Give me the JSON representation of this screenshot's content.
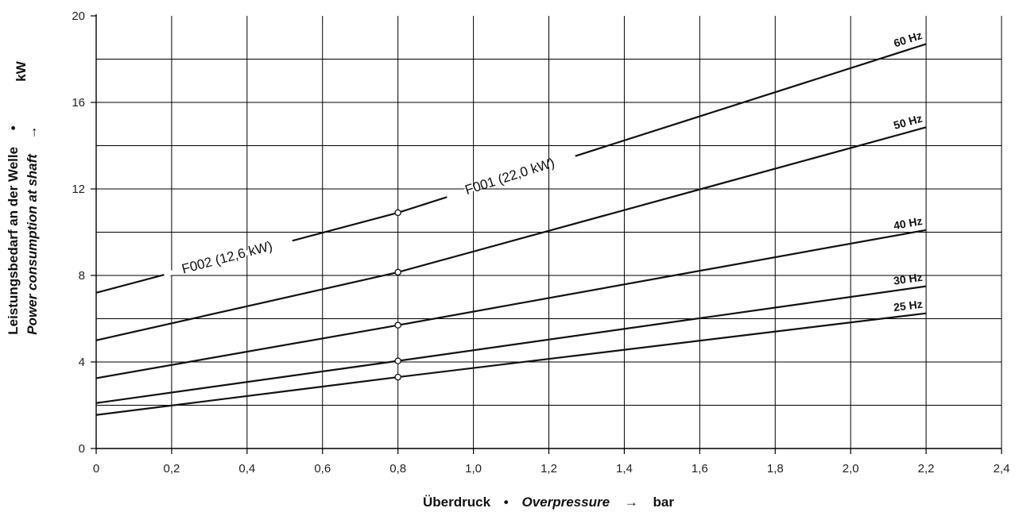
{
  "chart_data": {
    "type": "line",
    "title": "",
    "xlabel": {
      "de": "Überdruck",
      "sep": "•",
      "en": "Overpressure",
      "arrow": "→",
      "unit": "bar"
    },
    "ylabel": {
      "de": "Leistungsbedarf an der Welle",
      "sep": "•",
      "en": "Power consumption at shaft",
      "arrow": "→",
      "unit": "kW"
    },
    "xlim": [
      0,
      2.4
    ],
    "ylim": [
      0,
      20
    ],
    "x_ticks": [
      {
        "value": 0,
        "label": "0"
      },
      {
        "value": 0.2,
        "label": "0,2"
      },
      {
        "value": 0.4,
        "label": "0,4"
      },
      {
        "value": 0.6,
        "label": "0,6"
      },
      {
        "value": 0.8,
        "label": "0,8"
      },
      {
        "value": 1.0,
        "label": "1,0"
      },
      {
        "value": 1.2,
        "label": "1,2"
      },
      {
        "value": 1.4,
        "label": "1,4"
      },
      {
        "value": 1.6,
        "label": "1,6"
      },
      {
        "value": 1.8,
        "label": "1,8"
      },
      {
        "value": 2.0,
        "label": "2,0"
      },
      {
        "value": 2.2,
        "label": "2,2"
      },
      {
        "value": 2.4,
        "label": "2,4"
      }
    ],
    "y_ticks": [
      {
        "value": 0,
        "label": "0"
      },
      {
        "value": 4,
        "label": "4"
      },
      {
        "value": 8,
        "label": "8"
      },
      {
        "value": 12,
        "label": "12"
      },
      {
        "value": 16,
        "label": "16"
      },
      {
        "value": 20,
        "label": "20"
      }
    ],
    "y_gridlines": [
      2,
      4,
      6,
      8,
      10,
      12,
      14,
      16,
      18
    ],
    "grid": true,
    "series": [
      {
        "name": "60 Hz",
        "x": [
          0,
          0.8,
          2.2
        ],
        "y": [
          7.2,
          10.9,
          18.7
        ]
      },
      {
        "name": "50 Hz",
        "x": [
          0,
          0.8,
          2.2
        ],
        "y": [
          5.0,
          8.15,
          14.85
        ]
      },
      {
        "name": "40 Hz",
        "x": [
          0,
          0.8,
          2.2
        ],
        "y": [
          3.25,
          5.7,
          10.1
        ]
      },
      {
        "name": "30 Hz",
        "x": [
          0,
          0.8,
          2.2
        ],
        "y": [
          2.1,
          4.05,
          7.5
        ]
      },
      {
        "name": "25 Hz",
        "x": [
          0,
          0.8,
          2.2
        ],
        "y": [
          1.55,
          3.3,
          6.25
        ]
      }
    ],
    "markers": {
      "x": 0.8
    },
    "annotations": [
      {
        "text": "F002 (12,6 kW)",
        "series": "60 Hz",
        "x_from": 0.18,
        "x_to": 0.52
      },
      {
        "text": "F001 (22,0 kW)",
        "series": "60 Hz",
        "x_from": 0.93,
        "x_to": 1.27
      }
    ]
  }
}
